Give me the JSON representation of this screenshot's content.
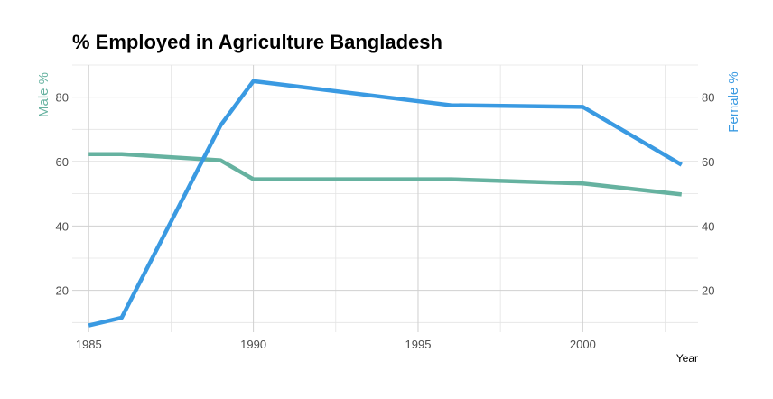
{
  "chart_data": {
    "type": "line",
    "title": "% Employed in Agriculture Bangladesh",
    "xlabel": "Year",
    "ylabel_left": "Male %",
    "ylabel_right": "Female %",
    "xlim": [
      1984.5,
      2003.5
    ],
    "ylim": [
      7,
      90
    ],
    "xticks": [
      1985,
      1990,
      1995,
      2000
    ],
    "yticks": [
      20,
      40,
      60,
      80
    ],
    "grid": true,
    "series": [
      {
        "name": "Male %",
        "color": "#66b2a0",
        "points": [
          [
            1985,
            62.3
          ],
          [
            1986,
            62.3
          ],
          [
            1989,
            60.4
          ],
          [
            1990,
            54.5
          ],
          [
            1996,
            54.5
          ],
          [
            2000,
            53.2
          ],
          [
            2003,
            49.8
          ]
        ]
      },
      {
        "name": "Female %",
        "color": "#3a9ae2",
        "points": [
          [
            1985,
            9.1
          ],
          [
            1986,
            11.5
          ],
          [
            1989,
            71.2
          ],
          [
            1990,
            85.0
          ],
          [
            1996,
            77.5
          ],
          [
            2000,
            77.0
          ],
          [
            2003,
            59.0
          ]
        ]
      }
    ]
  }
}
